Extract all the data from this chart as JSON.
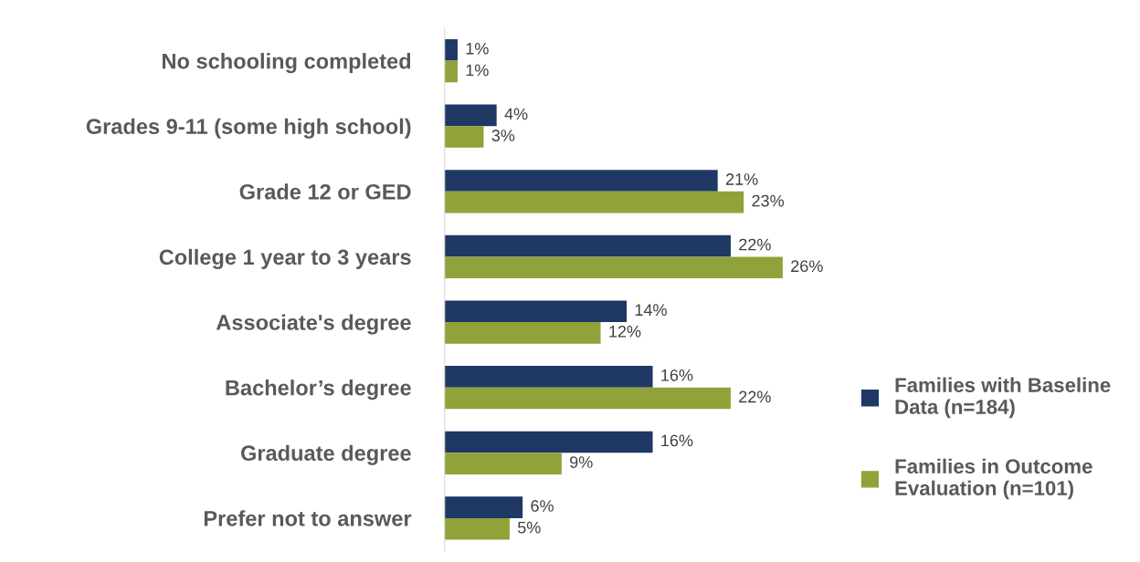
{
  "chart_data": {
    "type": "bar",
    "orientation": "horizontal",
    "categories": [
      "No schooling completed",
      "Grades 9-11 (some high school)",
      "Grade 12 or GED",
      "College 1 year to 3 years",
      "Associate's degree",
      "Bachelor’s degree",
      "Graduate degree",
      "Prefer not to answer"
    ],
    "series": [
      {
        "name": "Families with Baseline Data (n=184)",
        "color": "#1f3864",
        "values": [
          1,
          4,
          21,
          22,
          14,
          16,
          16,
          6
        ],
        "value_labels": [
          "1%",
          "4%",
          "21%",
          "22%",
          "14%",
          "16%",
          "16%",
          "6%"
        ]
      },
      {
        "name": "Families in Outcome Evaluation (n=101)",
        "color": "#8fa33a",
        "values": [
          1,
          3,
          23,
          26,
          12,
          22,
          9,
          5
        ],
        "value_labels": [
          "1%",
          "3%",
          "23%",
          "26%",
          "12%",
          "22%",
          "9%",
          "5%"
        ]
      }
    ],
    "legend": "right",
    "grid": false
  }
}
